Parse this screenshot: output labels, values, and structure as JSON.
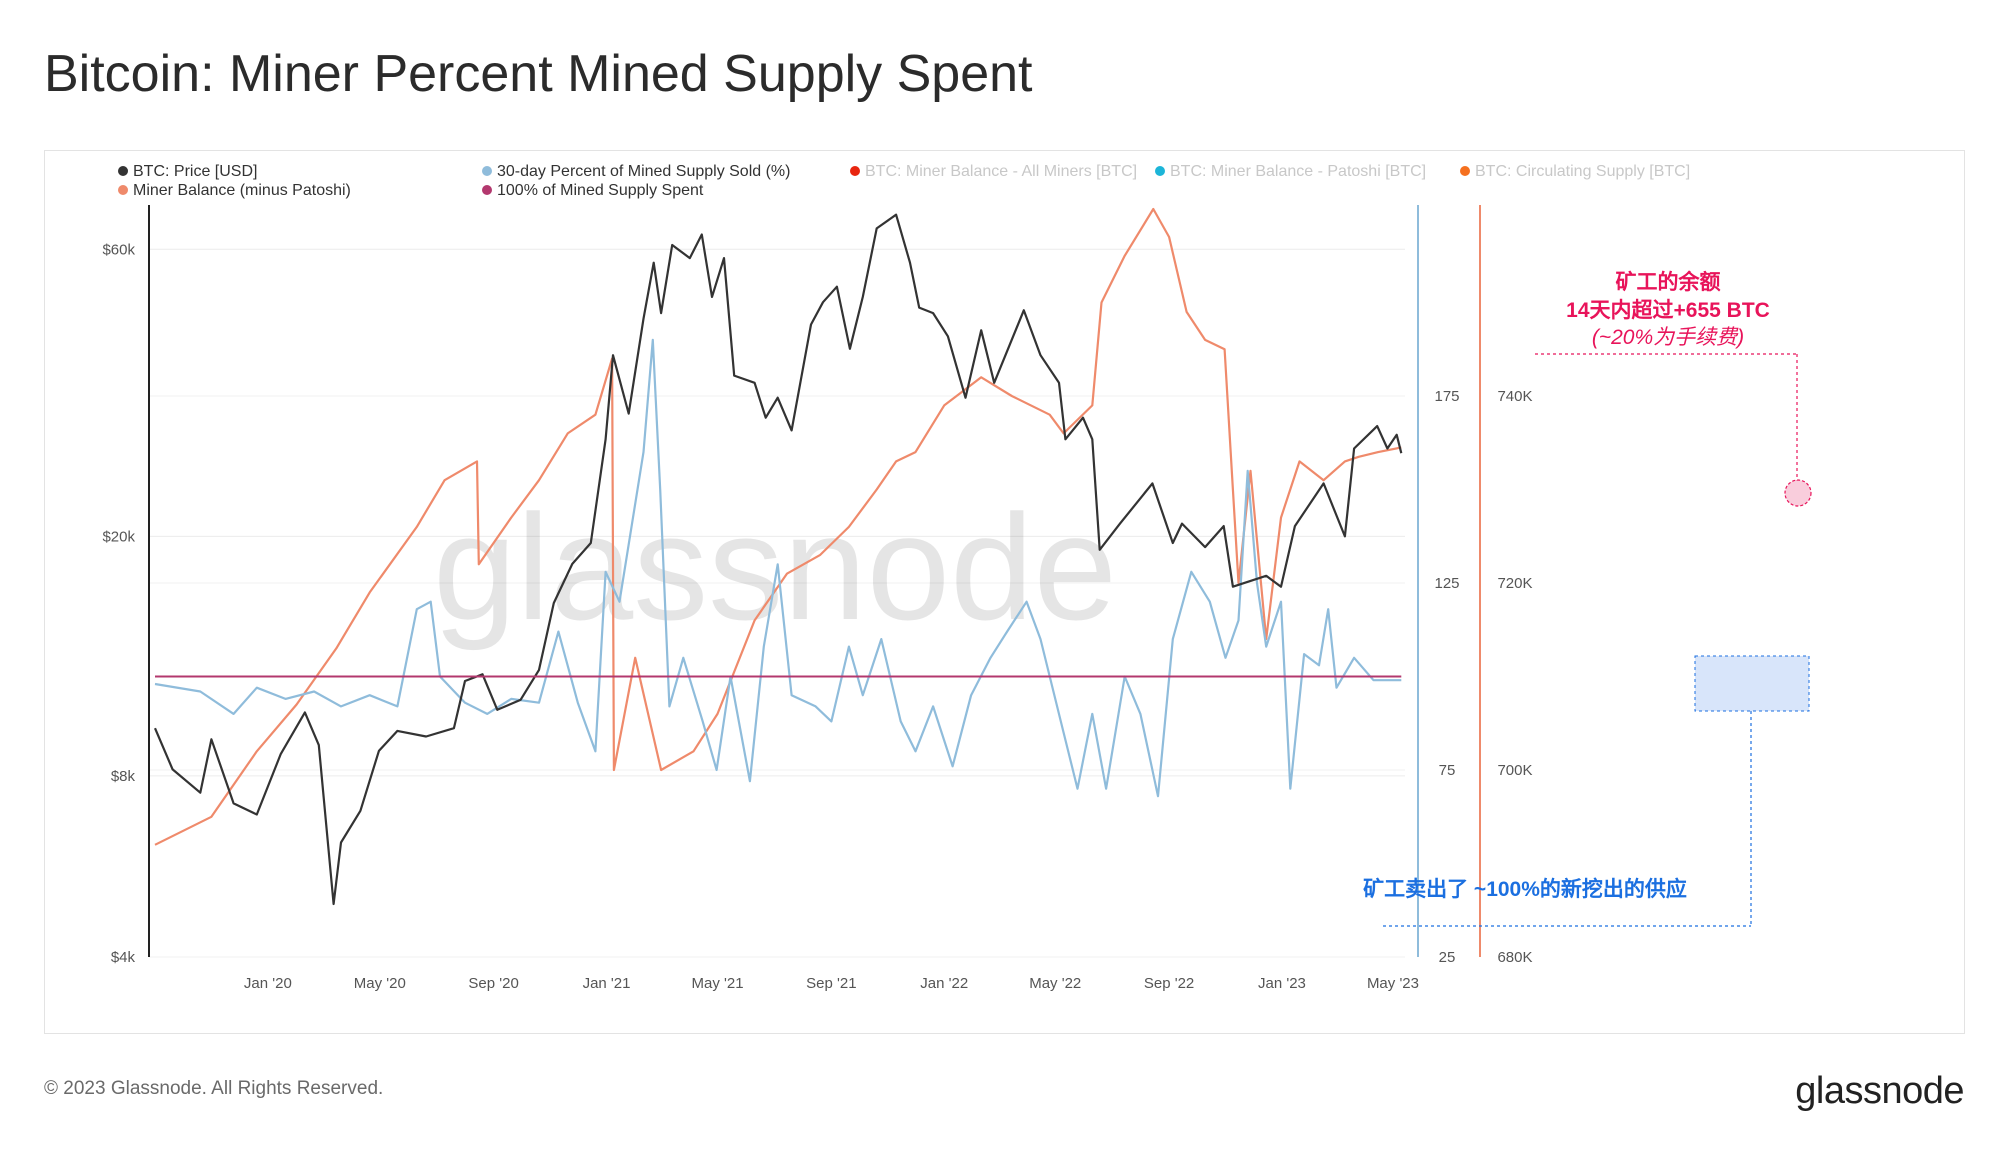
{
  "page": {
    "title": "Bitcoin: Miner Percent Mined Supply Spent",
    "copyright": "© 2023 Glassnode. All Rights Reserved.",
    "logo": "glassnode",
    "watermark": "glassnode"
  },
  "chart_data": {
    "type": "line",
    "title": "Bitcoin: Miner Percent Mined Supply Spent",
    "legend": [
      {
        "name": "BTC: Price [USD]",
        "color": "#333333",
        "active": true
      },
      {
        "name": "30-day Percent of Mined Supply Sold (%)",
        "color": "#8fbcdb",
        "active": true
      },
      {
        "name": "BTC: Miner Balance - All Miners [BTC]",
        "color": "#e8250f",
        "active": false
      },
      {
        "name": "BTC: Miner Balance - Patoshi [BTC]",
        "color": "#1cb5d8",
        "active": false
      },
      {
        "name": "BTC: Circulating Supply [BTC]",
        "color": "#f5701f",
        "active": false
      },
      {
        "name": "Miner Balance (minus Patoshi)",
        "color": "#ef8a6b",
        "active": true
      },
      {
        "name": "100% of Mined Supply Spent",
        "color": "#b3386e",
        "active": true
      }
    ],
    "legend_placement": "top",
    "x_ticks": [
      "Jan '20",
      "May '20",
      "Sep '20",
      "Jan '21",
      "May '21",
      "Sep '21",
      "Jan '22",
      "May '22",
      "Sep '22",
      "Jan '23",
      "May '23"
    ],
    "y_left_ticks": [
      "$60k",
      "$20k",
      "$8k",
      "$4k"
    ],
    "y_left_scale": "log",
    "y_left_range": [
      4000,
      70000
    ],
    "y_pct_ticks": [
      "175",
      "125",
      "75",
      "25"
    ],
    "y_pct_range": [
      25,
      225
    ],
    "y_right_ticks": [
      "740K",
      "720K",
      "700K",
      "680K"
    ],
    "y_right_range": [
      680000,
      760000
    ],
    "grid": true,
    "reference_line_pct": 100,
    "series": [
      {
        "name": "BTC: Price [USD]",
        "color": "#333333",
        "axis": "left",
        "points": [
          [
            "2019-09-01",
            9600
          ],
          [
            "2019-09-20",
            8200
          ],
          [
            "2019-10-20",
            7500
          ],
          [
            "2019-11-01",
            9200
          ],
          [
            "2019-11-25",
            7200
          ],
          [
            "2019-12-20",
            6900
          ],
          [
            "2020-01-15",
            8700
          ],
          [
            "2020-02-10",
            10200
          ],
          [
            "2020-02-25",
            9000
          ],
          [
            "2020-03-12",
            4900
          ],
          [
            "2020-03-20",
            6200
          ],
          [
            "2020-04-10",
            7000
          ],
          [
            "2020-04-30",
            8800
          ],
          [
            "2020-05-20",
            9500
          ],
          [
            "2020-06-20",
            9300
          ],
          [
            "2020-07-20",
            9600
          ],
          [
            "2020-08-01",
            11500
          ],
          [
            "2020-08-20",
            11800
          ],
          [
            "2020-09-05",
            10300
          ],
          [
            "2020-09-30",
            10700
          ],
          [
            "2020-10-20",
            12000
          ],
          [
            "2020-11-05",
            15500
          ],
          [
            "2020-11-25",
            18000
          ],
          [
            "2020-12-15",
            19500
          ],
          [
            "2020-12-31",
            29000
          ],
          [
            "2021-01-08",
            40000
          ],
          [
            "2021-01-25",
            32000
          ],
          [
            "2021-02-10",
            46000
          ],
          [
            "2021-02-21",
            57000
          ],
          [
            "2021-03-01",
            47000
          ],
          [
            "2021-03-13",
            61000
          ],
          [
            "2021-04-01",
            58000
          ],
          [
            "2021-04-14",
            63500
          ],
          [
            "2021-04-25",
            50000
          ],
          [
            "2021-05-08",
            58000
          ],
          [
            "2021-05-19",
            37000
          ],
          [
            "2021-06-10",
            36000
          ],
          [
            "2021-06-22",
            31500
          ],
          [
            "2021-07-05",
            34000
          ],
          [
            "2021-07-20",
            30000
          ],
          [
            "2021-08-10",
            45000
          ],
          [
            "2021-08-23",
            49000
          ],
          [
            "2021-09-07",
            52000
          ],
          [
            "2021-09-21",
            41000
          ],
          [
            "2021-10-05",
            50000
          ],
          [
            "2021-10-20",
            65000
          ],
          [
            "2021-11-10",
            68500
          ],
          [
            "2021-11-25",
            57000
          ],
          [
            "2021-12-05",
            48000
          ],
          [
            "2021-12-20",
            47000
          ],
          [
            "2022-01-05",
            43000
          ],
          [
            "2022-01-24",
            34000
          ],
          [
            "2022-02-10",
            44000
          ],
          [
            "2022-02-24",
            36000
          ],
          [
            "2022-03-28",
            47500
          ],
          [
            "2022-04-15",
            40000
          ],
          [
            "2022-05-05",
            36000
          ],
          [
            "2022-05-12",
            29000
          ],
          [
            "2022-05-31",
            31500
          ],
          [
            "2022-06-10",
            29000
          ],
          [
            "2022-06-18",
            19000
          ],
          [
            "2022-07-10",
            21000
          ],
          [
            "2022-08-14",
            24500
          ],
          [
            "2022-09-05",
            19500
          ],
          [
            "2022-09-15",
            21000
          ],
          [
            "2022-10-10",
            19200
          ],
          [
            "2022-10-30",
            20800
          ],
          [
            "2022-11-09",
            16500
          ],
          [
            "2022-12-15",
            17200
          ],
          [
            "2022-12-31",
            16500
          ],
          [
            "2023-01-15",
            20800
          ],
          [
            "2023-02-15",
            24500
          ],
          [
            "2023-03-10",
            20000
          ],
          [
            "2023-03-20",
            28000
          ],
          [
            "2023-04-14",
            30500
          ],
          [
            "2023-04-25",
            28000
          ],
          [
            "2023-05-05",
            29500
          ],
          [
            "2023-05-10",
            27500
          ]
        ]
      },
      {
        "name": "30-day Percent of Mined Supply Sold (%)",
        "color": "#8fbcdb",
        "axis": "pct",
        "points": [
          [
            "2019-09-01",
            98
          ],
          [
            "2019-10-20",
            96
          ],
          [
            "2019-11-25",
            90
          ],
          [
            "2019-12-20",
            97
          ],
          [
            "2020-01-20",
            94
          ],
          [
            "2020-02-20",
            96
          ],
          [
            "2020-03-20",
            92
          ],
          [
            "2020-04-20",
            95
          ],
          [
            "2020-05-20",
            92
          ],
          [
            "2020-06-10",
            118
          ],
          [
            "2020-06-25",
            120
          ],
          [
            "2020-07-05",
            100
          ],
          [
            "2020-08-01",
            93
          ],
          [
            "2020-08-25",
            90
          ],
          [
            "2020-09-20",
            94
          ],
          [
            "2020-10-20",
            93
          ],
          [
            "2020-11-10",
            112
          ],
          [
            "2020-12-01",
            93
          ],
          [
            "2020-12-20",
            80
          ],
          [
            "2020-12-31",
            128
          ],
          [
            "2021-01-15",
            120
          ],
          [
            "2021-02-10",
            160
          ],
          [
            "2021-02-20",
            190
          ],
          [
            "2021-02-28",
            150
          ],
          [
            "2021-03-10",
            92
          ],
          [
            "2021-03-25",
            105
          ],
          [
            "2021-04-15",
            88
          ],
          [
            "2021-04-30",
            75
          ],
          [
            "2021-05-15",
            100
          ],
          [
            "2021-06-05",
            72
          ],
          [
            "2021-06-20",
            108
          ],
          [
            "2021-07-05",
            130
          ],
          [
            "2021-07-20",
            95
          ],
          [
            "2021-08-15",
            92
          ],
          [
            "2021-09-01",
            88
          ],
          [
            "2021-09-20",
            108
          ],
          [
            "2021-10-05",
            95
          ],
          [
            "2021-10-25",
            110
          ],
          [
            "2021-11-15",
            88
          ],
          [
            "2021-12-01",
            80
          ],
          [
            "2021-12-20",
            92
          ],
          [
            "2022-01-10",
            76
          ],
          [
            "2022-01-30",
            95
          ],
          [
            "2022-02-20",
            105
          ],
          [
            "2022-03-10",
            112
          ],
          [
            "2022-03-31",
            120
          ],
          [
            "2022-04-15",
            110
          ],
          [
            "2022-05-10",
            85
          ],
          [
            "2022-05-25",
            70
          ],
          [
            "2022-06-10",
            90
          ],
          [
            "2022-06-25",
            70
          ],
          [
            "2022-07-15",
            100
          ],
          [
            "2022-08-01",
            90
          ],
          [
            "2022-08-20",
            68
          ],
          [
            "2022-09-05",
            110
          ],
          [
            "2022-09-25",
            128
          ],
          [
            "2022-10-15",
            120
          ],
          [
            "2022-11-01",
            105
          ],
          [
            "2022-11-15",
            115
          ],
          [
            "2022-11-25",
            155
          ],
          [
            "2022-12-05",
            125
          ],
          [
            "2022-12-15",
            108
          ],
          [
            "2022-12-31",
            120
          ],
          [
            "2023-01-10",
            70
          ],
          [
            "2023-01-25",
            106
          ],
          [
            "2023-02-10",
            103
          ],
          [
            "2023-02-20",
            118
          ],
          [
            "2023-03-01",
            97
          ],
          [
            "2023-03-20",
            105
          ],
          [
            "2023-04-10",
            99
          ],
          [
            "2023-05-10",
            99
          ]
        ]
      },
      {
        "name": "Miner Balance (minus Patoshi)",
        "color": "#ef8a6b",
        "axis": "right",
        "points": [
          [
            "2019-09-01",
            692000
          ],
          [
            "2019-11-01",
            695000
          ],
          [
            "2019-12-20",
            702000
          ],
          [
            "2020-02-01",
            707000
          ],
          [
            "2020-03-15",
            713000
          ],
          [
            "2020-04-20",
            719000
          ],
          [
            "2020-06-10",
            726000
          ],
          [
            "2020-07-10",
            731000
          ],
          [
            "2020-08-14",
            733000
          ],
          [
            "2020-08-16",
            722000
          ],
          [
            "2020-09-20",
            727000
          ],
          [
            "2020-10-20",
            731000
          ],
          [
            "2020-11-20",
            736000
          ],
          [
            "2020-12-20",
            738000
          ],
          [
            "2021-01-07",
            744000
          ],
          [
            "2021-01-09",
            700000
          ],
          [
            "2021-02-01",
            712000
          ],
          [
            "2021-03-01",
            700000
          ],
          [
            "2021-04-05",
            702000
          ],
          [
            "2021-05-01",
            706000
          ],
          [
            "2021-06-10",
            716000
          ],
          [
            "2021-07-15",
            721000
          ],
          [
            "2021-08-20",
            723000
          ],
          [
            "2021-09-20",
            726000
          ],
          [
            "2021-10-20",
            730000
          ],
          [
            "2021-11-10",
            733000
          ],
          [
            "2021-12-01",
            734000
          ],
          [
            "2022-01-01",
            739000
          ],
          [
            "2022-02-10",
            742000
          ],
          [
            "2022-03-15",
            740000
          ],
          [
            "2022-04-25",
            738000
          ],
          [
            "2022-05-10",
            736000
          ],
          [
            "2022-06-10",
            739000
          ],
          [
            "2022-06-20",
            750000
          ],
          [
            "2022-07-15",
            755000
          ],
          [
            "2022-08-15",
            760000
          ],
          [
            "2022-09-01",
            757000
          ],
          [
            "2022-09-20",
            749000
          ],
          [
            "2022-10-10",
            746000
          ],
          [
            "2022-10-31",
            745000
          ],
          [
            "2022-11-09",
            730000
          ],
          [
            "2022-11-15",
            720000
          ],
          [
            "2022-11-28",
            732000
          ],
          [
            "2022-12-15",
            714000
          ],
          [
            "2022-12-31",
            727000
          ],
          [
            "2023-01-20",
            733000
          ],
          [
            "2023-02-15",
            731000
          ],
          [
            "2023-03-10",
            733000
          ],
          [
            "2023-03-25",
            733500
          ],
          [
            "2023-04-15",
            734000
          ],
          [
            "2023-05-10",
            734500
          ]
        ]
      },
      {
        "name": "100% of Mined Supply Spent",
        "color": "#b3386e",
        "axis": "pct",
        "points": [
          [
            "2019-09-01",
            100
          ],
          [
            "2023-05-10",
            100
          ]
        ]
      }
    ],
    "annotations": [
      {
        "lines": [
          "矿工的余额",
          "14天内超过+655 BTC",
          "(~20%为手续费)"
        ],
        "color": "#e8145a"
      },
      {
        "lines": [
          "矿工卖出了 ~100%的新挖出的供应"
        ],
        "color": "#1b6fe0"
      }
    ]
  }
}
